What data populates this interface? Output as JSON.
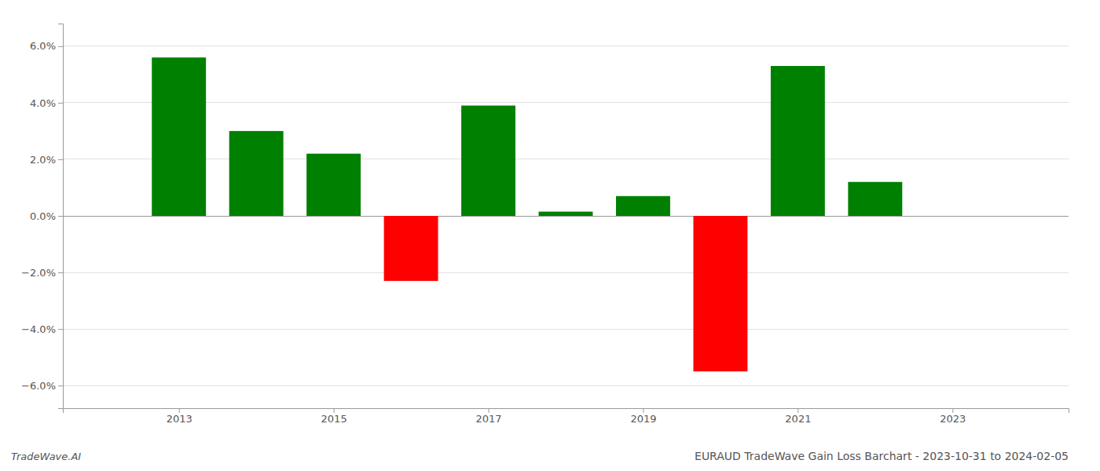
{
  "chart_data": {
    "type": "bar",
    "title": "EURAUD TradeWave Gain Loss Barchart - 2023-10-31 to 2024-02-05",
    "annotations": [
      "TradeWave.AI"
    ],
    "x": [
      2013,
      2014,
      2015,
      2016,
      2017,
      2018,
      2019,
      2020,
      2021,
      2022,
      2023
    ],
    "values": [
      0.056,
      0.03,
      0.022,
      -0.023,
      0.039,
      0.0015,
      0.007,
      -0.055,
      0.053,
      0.012,
      0.0
    ],
    "colors": [
      "#008000",
      "#008000",
      "#008000",
      "#ff0000",
      "#008000",
      "#008000",
      "#008000",
      "#ff0000",
      "#008000",
      "#008000",
      "#008000"
    ],
    "xlim": [
      2011.5,
      2024.5
    ],
    "xticks": [
      2013,
      2015,
      2017,
      2019,
      2021,
      2023
    ],
    "ylim": [
      -0.068,
      0.068
    ],
    "yticks": [
      {
        "value": -0.06,
        "label": "−6.0%"
      },
      {
        "value": -0.04,
        "label": "−4.0%"
      },
      {
        "value": -0.02,
        "label": "−2.0%"
      },
      {
        "value": 0.0,
        "label": "0.0%"
      },
      {
        "value": 0.02,
        "label": "2.0%"
      },
      {
        "value": 0.04,
        "label": "4.0%"
      },
      {
        "value": 0.06,
        "label": "6.0%"
      }
    ],
    "grid": true
  }
}
